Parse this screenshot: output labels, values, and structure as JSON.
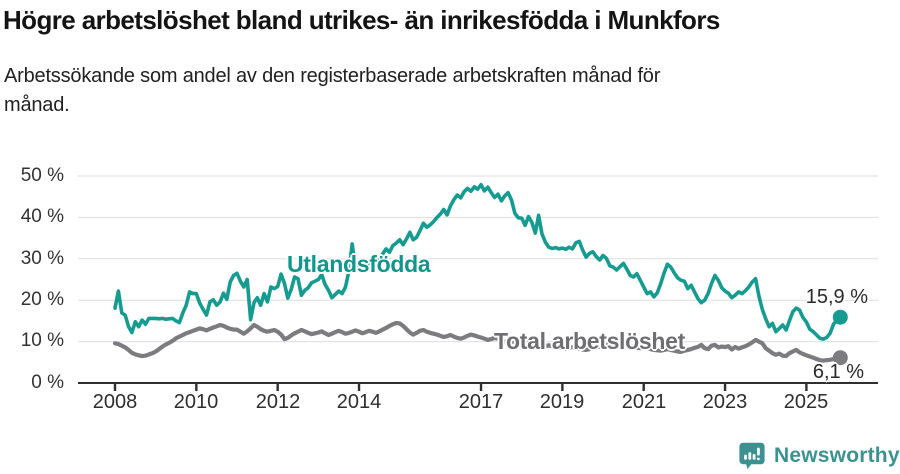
{
  "header": {
    "title": "Högre arbetslöshet bland utrikes- än inrikesfödda i Munkfors",
    "subtitle": "Arbetssökande som andel av den registerbaserade arbetskraften månad för månad."
  },
  "branding": {
    "logo_text": "Newsworthy",
    "logo_icon": "speech-bubble-bar-chart-icon",
    "brand_color": "#3C9290"
  },
  "chart_data": {
    "type": "line",
    "x_unit": "year, monthly points",
    "x_range": [
      "2008-01",
      "2025-11"
    ],
    "x_tick_years": [
      2008,
      2010,
      2012,
      2014,
      2017,
      2019,
      2021,
      2023,
      2025
    ],
    "x_tick_labels": [
      "2008",
      "2010",
      "2012",
      "2014",
      "2017",
      "2019",
      "2021",
      "2023",
      "2025"
    ],
    "y_ticks": [
      0,
      10,
      20,
      30,
      40,
      50
    ],
    "y_tick_labels": [
      "50 %",
      "40 %",
      "30 %",
      "20 %",
      "10 %",
      "0 %"
    ],
    "ylim": [
      0,
      52
    ],
    "grid": "horizontal",
    "legend_position": "inline-labels",
    "grid_color": "#DEDEDE",
    "axis_color": "#2F2F2F",
    "series": [
      {
        "id": "utlandsfodda",
        "name": "Utlandsfödda",
        "color": "#169B90",
        "label_color": "#12968C",
        "line_width": 3.6,
        "end_label": "15,9 %",
        "end_value": 15.9,
        "values": [
          18.1,
          22.2,
          16.9,
          16.4,
          13.6,
          12.2,
          14.8,
          13.6,
          15.2,
          14.2,
          15.6,
          15.6,
          15.6,
          15.5,
          15.6,
          15.4,
          15.5,
          15.6,
          15.0,
          14.6,
          16.9,
          18.8,
          22.0,
          21.6,
          21.6,
          19.3,
          17.8,
          16.4,
          19.6,
          20.1,
          18.8,
          19.6,
          21.7,
          20.2,
          24.4,
          26.0,
          26.5,
          24.6,
          23.2,
          25.0,
          15.3,
          19.4,
          20.6,
          18.8,
          21.6,
          19.6,
          23.2,
          22.8,
          23.3,
          26.3,
          24.0,
          20.5,
          22.6,
          25.6,
          25.2,
          21.2,
          22.4,
          23.0,
          24.2,
          24.6,
          25.0,
          26.2,
          23.8,
          22.4,
          20.6,
          21.4,
          22.2,
          21.6,
          23.2,
          27.0,
          33.6,
          27.4,
          27.8,
          28.4,
          27.2,
          28.8,
          29.4,
          29.0,
          30.2,
          31.2,
          32.4,
          31.6,
          33.2,
          33.8,
          34.6,
          33.4,
          34.8,
          36.4,
          34.6,
          35.2,
          36.8,
          38.6,
          37.6,
          38.2,
          39.0,
          40.0,
          40.8,
          41.9,
          40.6,
          42.8,
          44.3,
          45.4,
          44.7,
          46.2,
          47.0,
          46.3,
          47.4,
          46.8,
          47.9,
          46.4,
          47.3,
          46.0,
          44.8,
          45.6,
          44.0,
          45.2,
          46.0,
          44.2,
          41.0,
          39.9,
          39.8,
          38.1,
          40.2,
          38.8,
          36.2,
          40.5,
          36.0,
          34.0,
          32.8,
          32.5,
          32.7,
          32.4,
          32.6,
          32.3,
          32.8,
          32.4,
          33.9,
          34.2,
          32.1,
          30.4,
          31.3,
          31.7,
          30.5,
          29.7,
          30.8,
          30.1,
          28.3,
          28.0,
          27.3,
          28.1,
          28.9,
          27.5,
          26.0,
          25.6,
          26.4,
          24.8,
          23.2,
          21.6,
          22.0,
          20.8,
          21.8,
          24.0,
          26.5,
          28.7,
          28.0,
          26.6,
          25.4,
          24.8,
          24.6,
          22.8,
          23.6,
          22.0,
          20.4,
          19.4,
          20.0,
          21.6,
          24.0,
          26.0,
          24.8,
          23.0,
          22.2,
          21.7,
          20.6,
          21.2,
          22.0,
          21.6,
          22.3,
          23.2,
          24.4,
          25.2,
          21.0,
          17.8,
          15.5,
          13.6,
          14.4,
          12.4,
          13.2,
          14.0,
          12.8,
          15.0,
          17.2,
          18.1,
          17.6,
          15.8,
          14.7,
          13.0,
          12.4,
          11.6,
          10.8,
          10.6,
          11.0,
          12.0,
          14.2,
          15.3,
          15.9
        ]
      },
      {
        "id": "total-arbetsloshet",
        "name": "Total arbetslöshet",
        "color": "#7B7B80",
        "label_color": "#6E6E73",
        "line_width": 4.2,
        "end_label": "6,1 %",
        "end_value": 6.1,
        "values": [
          9.6,
          9.4,
          9.0,
          8.6,
          8.0,
          7.3,
          6.9,
          6.7,
          6.5,
          6.6,
          6.9,
          7.2,
          7.6,
          8.2,
          8.8,
          9.3,
          9.7,
          10.2,
          10.8,
          11.2,
          11.6,
          12.0,
          12.3,
          12.6,
          12.9,
          13.2,
          13.0,
          12.7,
          13.1,
          13.4,
          13.7,
          14.0,
          13.8,
          13.4,
          13.1,
          12.9,
          12.9,
          12.4,
          11.9,
          12.5,
          13.2,
          14.0,
          13.6,
          13.0,
          12.6,
          12.4,
          12.6,
          12.8,
          12.4,
          11.7,
          10.6,
          10.9,
          11.5,
          12.0,
          12.4,
          12.8,
          12.5,
          12.1,
          11.8,
          12.0,
          12.2,
          12.5,
          12.0,
          11.6,
          11.9,
          12.3,
          12.6,
          12.3,
          11.9,
          12.1,
          12.4,
          12.7,
          12.4,
          12.0,
          12.3,
          12.6,
          12.4,
          12.1,
          12.5,
          12.9,
          13.3,
          13.8,
          14.2,
          14.5,
          14.4,
          13.8,
          13.0,
          12.2,
          11.7,
          12.1,
          12.6,
          12.8,
          12.4,
          12.1,
          11.9,
          11.7,
          11.4,
          11.1,
          11.3,
          11.6,
          11.2,
          10.9,
          10.7,
          11.0,
          11.4,
          11.7,
          11.5,
          11.2,
          11.0,
          10.7,
          10.4,
          10.6,
          10.9,
          10.7,
          10.3,
          10.0,
          9.8,
          9.9,
          10.1,
          10.3,
          10.0,
          9.7,
          9.4,
          9.2,
          9.0,
          8.8,
          8.7,
          8.9,
          9.1,
          8.9,
          8.7,
          8.5,
          8.4,
          8.3,
          8.5,
          8.7,
          8.5,
          8.3,
          8.1,
          8.0,
          8.2,
          8.4,
          8.6,
          8.8,
          9.0,
          9.2,
          9.5,
          9.7,
          9.5,
          9.3,
          9.1,
          9.0,
          8.8,
          8.7,
          8.5,
          8.4,
          8.6,
          8.4,
          8.2,
          8.0,
          7.9,
          7.8,
          8.0,
          8.2,
          8.0,
          7.8,
          7.6,
          7.5,
          7.8,
          8.0,
          8.2,
          8.5,
          8.7,
          9.2,
          8.4,
          8.2,
          9.0,
          9.2,
          8.6,
          8.8,
          8.7,
          8.9,
          8.1,
          8.7,
          8.3,
          8.6,
          8.9,
          9.3,
          9.8,
          10.4,
          10.0,
          9.6,
          8.4,
          7.8,
          7.2,
          6.8,
          7.1,
          6.6,
          6.5,
          7.2,
          7.6,
          8.0,
          7.4,
          7.0,
          6.7,
          6.4,
          6.1,
          5.8,
          5.5,
          5.4,
          5.5,
          5.6,
          5.8,
          6.0,
          6.1
        ]
      }
    ]
  }
}
